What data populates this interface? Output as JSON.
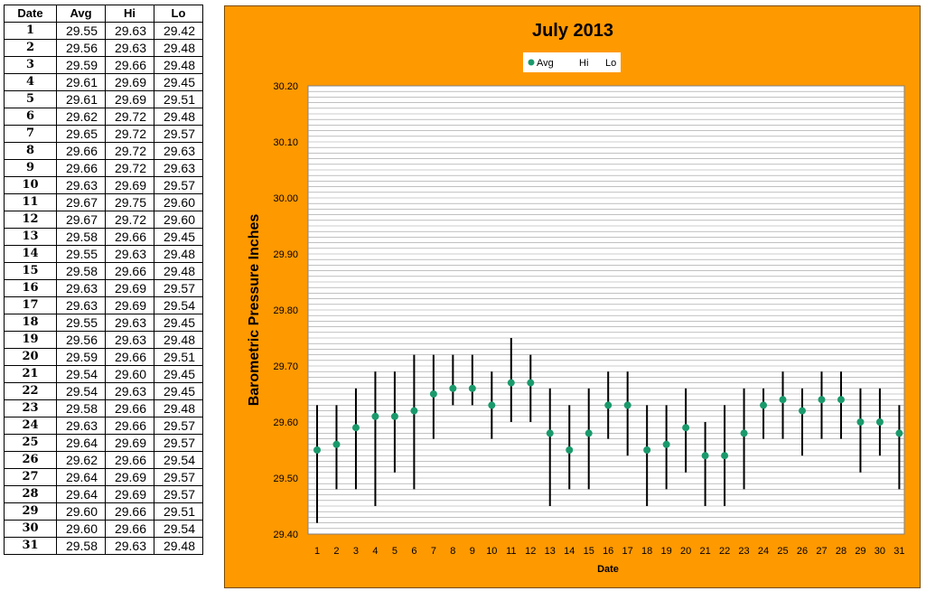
{
  "table": {
    "headers": [
      "Date",
      "Avg",
      "Hi",
      "Lo"
    ],
    "rows": [
      [
        "1",
        "29.55",
        "29.63",
        "29.42"
      ],
      [
        "2",
        "29.56",
        "29.63",
        "29.48"
      ],
      [
        "3",
        "29.59",
        "29.66",
        "29.48"
      ],
      [
        "4",
        "29.61",
        "29.69",
        "29.45"
      ],
      [
        "5",
        "29.61",
        "29.69",
        "29.51"
      ],
      [
        "6",
        "29.62",
        "29.72",
        "29.48"
      ],
      [
        "7",
        "29.65",
        "29.72",
        "29.57"
      ],
      [
        "8",
        "29.66",
        "29.72",
        "29.63"
      ],
      [
        "9",
        "29.66",
        "29.72",
        "29.63"
      ],
      [
        "10",
        "29.63",
        "29.69",
        "29.57"
      ],
      [
        "11",
        "29.67",
        "29.75",
        "29.60"
      ],
      [
        "12",
        "29.67",
        "29.72",
        "29.60"
      ],
      [
        "13",
        "29.58",
        "29.66",
        "29.45"
      ],
      [
        "14",
        "29.55",
        "29.63",
        "29.48"
      ],
      [
        "15",
        "29.58",
        "29.66",
        "29.48"
      ],
      [
        "16",
        "29.63",
        "29.69",
        "29.57"
      ],
      [
        "17",
        "29.63",
        "29.69",
        "29.54"
      ],
      [
        "18",
        "29.55",
        "29.63",
        "29.45"
      ],
      [
        "19",
        "29.56",
        "29.63",
        "29.48"
      ],
      [
        "20",
        "29.59",
        "29.66",
        "29.51"
      ],
      [
        "21",
        "29.54",
        "29.60",
        "29.45"
      ],
      [
        "22",
        "29.54",
        "29.63",
        "29.45"
      ],
      [
        "23",
        "29.58",
        "29.66",
        "29.48"
      ],
      [
        "24",
        "29.63",
        "29.66",
        "29.57"
      ],
      [
        "25",
        "29.64",
        "29.69",
        "29.57"
      ],
      [
        "26",
        "29.62",
        "29.66",
        "29.54"
      ],
      [
        "27",
        "29.64",
        "29.69",
        "29.57"
      ],
      [
        "28",
        "29.64",
        "29.69",
        "29.57"
      ],
      [
        "29",
        "29.60",
        "29.66",
        "29.51"
      ],
      [
        "30",
        "29.60",
        "29.66",
        "29.54"
      ],
      [
        "31",
        "29.58",
        "29.63",
        "29.48"
      ]
    ]
  },
  "chart_data": {
    "type": "scatter",
    "title": "July 2013",
    "xlabel": "Date",
    "ylabel": "Barometric Pressure Inches",
    "legend_position": "top-center",
    "grid": true,
    "ylim": [
      29.4,
      30.2
    ],
    "y_ticks": [
      "29.40",
      "29.50",
      "29.60",
      "29.70",
      "29.80",
      "29.90",
      "30.00",
      "30.10",
      "30.20"
    ],
    "categories": [
      "1",
      "2",
      "3",
      "4",
      "5",
      "6",
      "7",
      "8",
      "9",
      "10",
      "11",
      "12",
      "13",
      "14",
      "15",
      "16",
      "17",
      "18",
      "19",
      "20",
      "21",
      "22",
      "23",
      "24",
      "25",
      "26",
      "27",
      "28",
      "29",
      "30",
      "31"
    ],
    "series": [
      {
        "name": "Avg",
        "color": "#1a9a6c",
        "values": [
          29.55,
          29.56,
          29.59,
          29.61,
          29.61,
          29.62,
          29.65,
          29.66,
          29.66,
          29.63,
          29.67,
          29.67,
          29.58,
          29.55,
          29.58,
          29.63,
          29.63,
          29.55,
          29.56,
          29.59,
          29.54,
          29.54,
          29.58,
          29.63,
          29.64,
          29.62,
          29.64,
          29.64,
          29.6,
          29.6,
          29.58
        ]
      },
      {
        "name": "Hi",
        "color": "#000000",
        "values": [
          29.63,
          29.63,
          29.66,
          29.69,
          29.69,
          29.72,
          29.72,
          29.72,
          29.72,
          29.69,
          29.75,
          29.72,
          29.66,
          29.63,
          29.66,
          29.69,
          29.69,
          29.63,
          29.63,
          29.66,
          29.6,
          29.63,
          29.66,
          29.66,
          29.69,
          29.66,
          29.69,
          29.69,
          29.66,
          29.66,
          29.63
        ]
      },
      {
        "name": "Lo",
        "color": "#000000",
        "values": [
          29.42,
          29.48,
          29.48,
          29.45,
          29.51,
          29.48,
          29.57,
          29.63,
          29.63,
          29.57,
          29.6,
          29.6,
          29.45,
          29.48,
          29.48,
          29.57,
          29.54,
          29.45,
          29.48,
          29.51,
          29.45,
          29.45,
          29.48,
          29.57,
          29.57,
          29.54,
          29.57,
          29.57,
          29.51,
          29.54,
          29.48
        ]
      }
    ]
  }
}
